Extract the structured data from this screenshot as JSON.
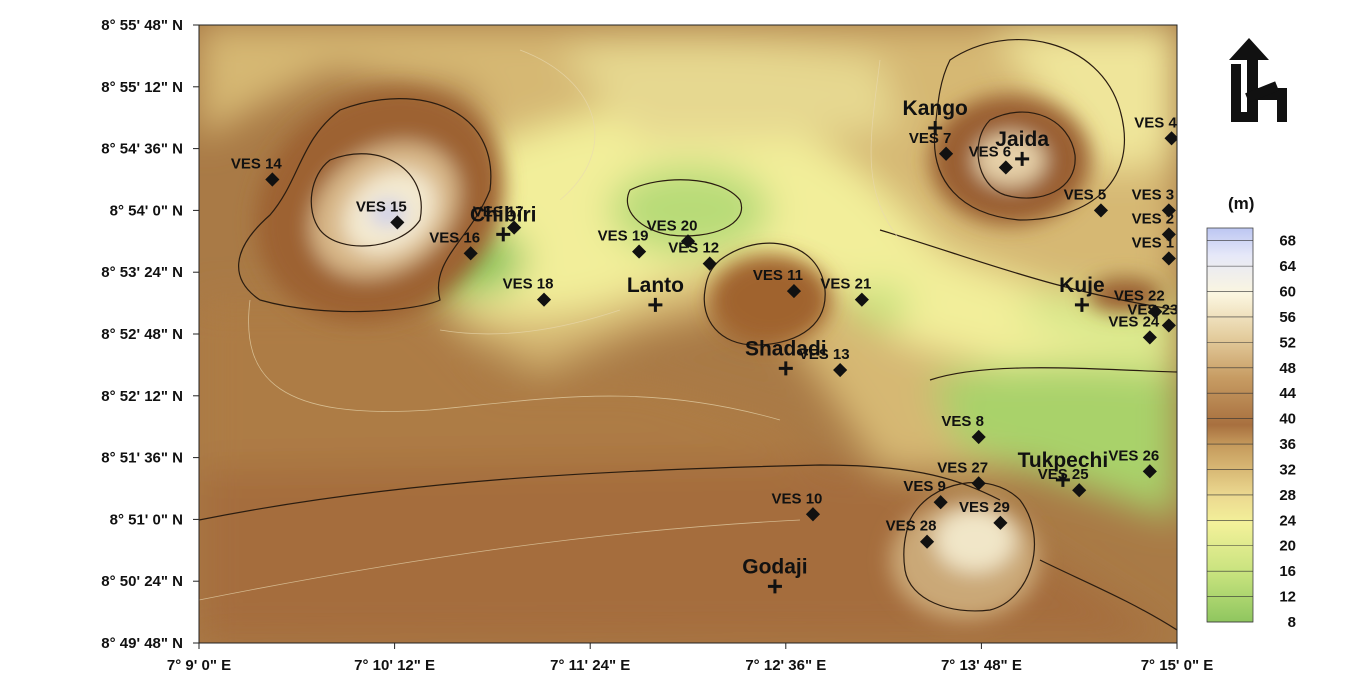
{
  "map": {
    "y_ticks": [
      "8° 55' 48\" N",
      "8° 55' 12\" N",
      "8° 54' 36\" N",
      "8° 54' 0\" N",
      "8° 53' 24\" N",
      "8° 52' 48\" N",
      "8° 52' 12\" N",
      "8° 51' 36\" N",
      "8° 51' 0\" N",
      "8° 50' 24\" N",
      "8° 49' 48\" N"
    ],
    "x_ticks": [
      "7° 9' 0\" E",
      "7° 10' 12\" E",
      "7° 11' 24\" E",
      "7° 12' 36\" E",
      "7° 13' 48\" E",
      "7° 15' 0\" E"
    ],
    "north_arrow": "north-arrow-icon",
    "legend": {
      "unit": "(m)",
      "ticks": [
        "68",
        "64",
        "60",
        "56",
        "52",
        "48",
        "44",
        "40",
        "36",
        "32",
        "28",
        "24",
        "20",
        "16",
        "12",
        "8"
      ],
      "range": [
        8,
        70
      ],
      "colors": {
        "low": "#8fc65f",
        "mid_low": "#f3f19a",
        "mid": "#d4b26c",
        "high": "#a8703f",
        "peak": "#fbf6df",
        "top": "#bcc6f2"
      }
    },
    "ves_points": [
      {
        "label": "VES 1",
        "lon": "7° 14' 57\" E",
        "lat": "8° 53' 32\" N"
      },
      {
        "label": "VES 2",
        "lon": "7° 14' 57\" E",
        "lat": "8° 53' 46\" N"
      },
      {
        "label": "VES 3",
        "lon": "7° 14' 57\" E",
        "lat": "8° 54' 0\" N"
      },
      {
        "label": "VES 4",
        "lon": "7° 14' 58\" E",
        "lat": "8° 54' 42\" N"
      },
      {
        "label": "VES 5",
        "lon": "7° 14' 32\" E",
        "lat": "8° 54' 0\" N"
      },
      {
        "label": "VES 6",
        "lon": "7° 13' 57\" E",
        "lat": "8° 54' 25\" N"
      },
      {
        "label": "VES 7",
        "lon": "7° 13' 35\" E",
        "lat": "8° 54' 33\" N"
      },
      {
        "label": "VES 8",
        "lon": "7° 13' 47\" E",
        "lat": "8° 51' 48\" N"
      },
      {
        "label": "VES 9",
        "lon": "7° 13' 33\" E",
        "lat": "8° 51' 10\" N"
      },
      {
        "label": "VES 10",
        "lon": "7° 12' 46\" E",
        "lat": "8° 51' 3\" N"
      },
      {
        "label": "VES 11",
        "lon": "7° 12' 39\" E",
        "lat": "8° 53' 13\" N"
      },
      {
        "label": "VES 12",
        "lon": "7° 12' 8\" E",
        "lat": "8° 53' 29\" N"
      },
      {
        "label": "VES 13",
        "lon": "7° 12' 56\" E",
        "lat": "8° 52' 27\" N"
      },
      {
        "label": "VES 14",
        "lon": "7° 9' 27\" E",
        "lat": "8° 54' 18\" N"
      },
      {
        "label": "VES 15",
        "lon": "7° 10' 13\" E",
        "lat": "8° 53' 53\" N"
      },
      {
        "label": "VES 16",
        "lon": "7° 10' 40\" E",
        "lat": "8° 53' 35\" N"
      },
      {
        "label": "VES 17",
        "lon": "7° 10' 56\" E",
        "lat": "8° 53' 50\" N"
      },
      {
        "label": "VES 18",
        "lon": "7° 11' 7\" E",
        "lat": "8° 53' 8\" N"
      },
      {
        "label": "VES 19",
        "lon": "7° 11' 42\" E",
        "lat": "8° 53' 36\" N"
      },
      {
        "label": "VES 20",
        "lon": "7° 12' 0\" E",
        "lat": "8° 53' 42\" N"
      },
      {
        "label": "VES 21",
        "lon": "7° 13' 4\" E",
        "lat": "8° 53' 8\" N"
      },
      {
        "label": "VES 22",
        "lon": "7° 14' 52\" E",
        "lat": "8° 53' 1\" N"
      },
      {
        "label": "VES 23",
        "lon": "7° 14' 57\" E",
        "lat": "8° 52' 53\" N"
      },
      {
        "label": "VES 24",
        "lon": "7° 14' 50\" E",
        "lat": "8° 52' 46\" N"
      },
      {
        "label": "VES 25",
        "lon": "7° 14' 24\" E",
        "lat": "8° 51' 17\" N"
      },
      {
        "label": "VES 26",
        "lon": "7° 14' 50\" E",
        "lat": "8° 51' 28\" N"
      },
      {
        "label": "VES 27",
        "lon": "7° 13' 47\" E",
        "lat": "8° 51' 21\" N"
      },
      {
        "label": "VES 28",
        "lon": "7° 13' 28\" E",
        "lat": "8° 50' 47\" N"
      },
      {
        "label": "VES 29",
        "lon": "7° 13' 55\" E",
        "lat": "8° 50' 58\" N"
      }
    ],
    "towns": [
      {
        "name": "Kango",
        "lon": "7° 13' 31\" E",
        "lat": "8° 54' 48\" N"
      },
      {
        "name": "Jaida",
        "lon": "7° 14' 3\" E",
        "lat": "8° 54' 30\" N"
      },
      {
        "name": "Chibiri",
        "lon": "7° 10' 52\" E",
        "lat": "8° 53' 46\" N"
      },
      {
        "name": "Lanto",
        "lon": "7° 11' 48\" E",
        "lat": "8° 53' 5\" N"
      },
      {
        "name": "Kuje",
        "lon": "7° 14' 25\" E",
        "lat": "8° 53' 5\" N"
      },
      {
        "name": "Shadadi",
        "lon": "7° 12' 36\" E",
        "lat": "8° 52' 28\" N"
      },
      {
        "name": "Tukpechi",
        "lon": "7° 14' 18\" E",
        "lat": "8° 51' 23\" N"
      },
      {
        "name": "Godaji",
        "lon": "7° 12' 32\" E",
        "lat": "8° 50' 21\" N"
      }
    ]
  }
}
